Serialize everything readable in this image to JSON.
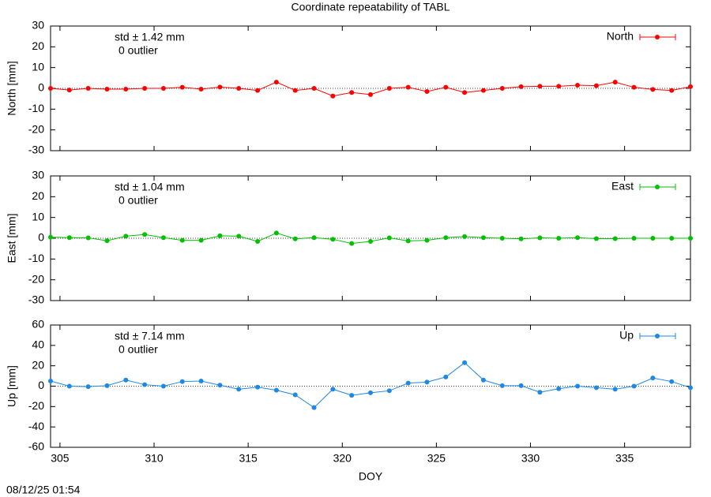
{
  "title": "Coordinate repeatability of TABL",
  "timestamp": "08/12/25 01:54",
  "chart_data": [
    {
      "type": "line",
      "ylabel": "North [mm]",
      "annotations": [
        "std ± 1.42 mm",
        "0 outlier"
      ],
      "legend": "top-right",
      "zero_line": true,
      "x": [
        304.5,
        305.5,
        306.5,
        307.5,
        308.5,
        309.5,
        310.5,
        311.5,
        312.5,
        313.5,
        314.5,
        315.5,
        316.5,
        317.5,
        318.5,
        319.5,
        320.5,
        321.5,
        322.5,
        323.5,
        324.5,
        325.5,
        326.5,
        327.5,
        328.5,
        329.5,
        330.5,
        331.5,
        332.5,
        333.5,
        334.5,
        335.5,
        336.5,
        337.5,
        338.5
      ],
      "series": [
        {
          "name": "North",
          "color": "#ff0000",
          "values": [
            0,
            -0.8,
            0,
            -0.4,
            -0.4,
            0,
            0,
            0.5,
            -0.4,
            0.6,
            0,
            -1,
            3,
            -1,
            0,
            -3.7,
            -2,
            -3,
            0,
            0.5,
            -1.5,
            0.5,
            -2,
            -1,
            0,
            0.8,
            1,
            1,
            1.5,
            1.3,
            3,
            0.5,
            -0.5,
            -1,
            0.8
          ]
        }
      ],
      "xlim": [
        304.5,
        338.5
      ],
      "xticks": [
        305,
        310,
        315,
        320,
        325,
        330,
        335
      ],
      "ylim": [
        -30,
        30
      ],
      "yticks": [
        -30,
        -20,
        -10,
        0,
        10,
        20,
        30
      ]
    },
    {
      "type": "line",
      "ylabel": "East [mm]",
      "annotations": [
        "std ± 1.04 mm",
        "0 outlier"
      ],
      "legend": "top-right",
      "zero_line": true,
      "x": [
        304.5,
        305.5,
        306.5,
        307.5,
        308.5,
        309.5,
        310.5,
        311.5,
        312.5,
        313.5,
        314.5,
        315.5,
        316.5,
        317.5,
        318.5,
        319.5,
        320.5,
        321.5,
        322.5,
        323.5,
        324.5,
        325.5,
        326.5,
        327.5,
        328.5,
        329.5,
        330.5,
        331.5,
        332.5,
        333.5,
        334.5,
        335.5,
        336.5,
        337.5,
        338.5
      ],
      "series": [
        {
          "name": "East",
          "color": "#00c000",
          "values": [
            0.5,
            0.3,
            0.2,
            -1.2,
            1,
            1.8,
            0.3,
            -1,
            -1,
            1.2,
            1,
            -1.5,
            2.5,
            -0.3,
            0.3,
            -0.5,
            -2.5,
            -1.5,
            0.2,
            -1.3,
            -1,
            0.3,
            0.8,
            0.3,
            0,
            -0.3,
            0.2,
            0,
            0.3,
            -0.2,
            -0.2,
            0,
            0,
            0,
            0
          ]
        }
      ],
      "xlim": [
        304.5,
        338.5
      ],
      "xticks": [
        305,
        310,
        315,
        320,
        325,
        330,
        335
      ],
      "ylim": [
        -30,
        30
      ],
      "yticks": [
        -30,
        -20,
        -10,
        0,
        10,
        20,
        30
      ]
    },
    {
      "type": "line",
      "ylabel": "Up [mm]",
      "xlabel": "DOY",
      "annotations": [
        "std ± 7.14 mm",
        "0 outlier"
      ],
      "legend": "top-right",
      "zero_line": true,
      "x": [
        304.5,
        305.5,
        306.5,
        307.5,
        308.5,
        309.5,
        310.5,
        311.5,
        312.5,
        313.5,
        314.5,
        315.5,
        316.5,
        317.5,
        318.5,
        319.5,
        320.5,
        321.5,
        322.5,
        323.5,
        324.5,
        325.5,
        326.5,
        327.5,
        328.5,
        329.5,
        330.5,
        331.5,
        332.5,
        333.5,
        334.5,
        335.5,
        336.5,
        337.5,
        338.5
      ],
      "series": [
        {
          "name": "Up",
          "color": "#1e88e5",
          "values": [
            5,
            0,
            -0.5,
            0.5,
            6,
            1.5,
            0,
            4.5,
            5,
            1,
            -3,
            -1,
            -4,
            -8.5,
            -21,
            -3,
            -9,
            -6.5,
            -4.5,
            3,
            4,
            9,
            23,
            6,
            0.5,
            0.5,
            -6,
            -2.5,
            0,
            -1.5,
            -3,
            0,
            8,
            4.5,
            -1.5
          ]
        }
      ],
      "xlim": [
        304.5,
        338.5
      ],
      "xticks": [
        305,
        310,
        315,
        320,
        325,
        330,
        335
      ],
      "ylim": [
        -60,
        60
      ],
      "yticks": [
        -60,
        -40,
        -20,
        0,
        20,
        40,
        60
      ]
    }
  ]
}
